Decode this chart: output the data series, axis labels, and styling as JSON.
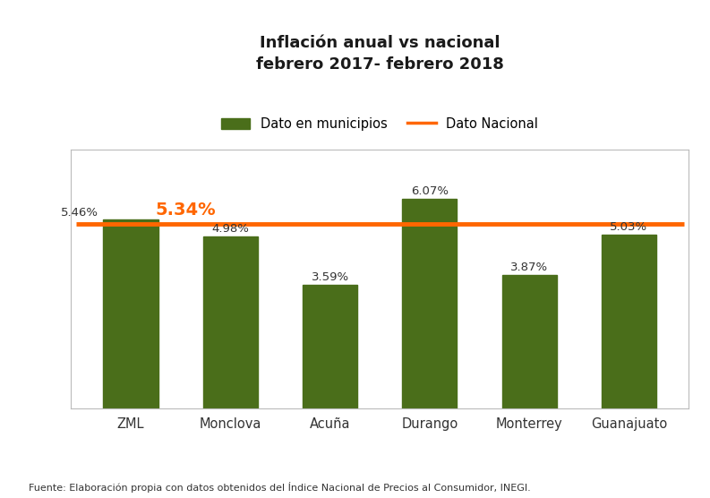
{
  "title": "Inflación anual vs nacional\nfebrero 2017- febrero 2018",
  "categories": [
    "ZML",
    "Monclova",
    "Acuña",
    "Durango",
    "Monterrey",
    "Guanajuato"
  ],
  "values": [
    5.46,
    4.98,
    3.59,
    6.07,
    3.87,
    5.03
  ],
  "bar_color": "#4a6e1a",
  "national_value": 5.34,
  "national_color": "#FF6600",
  "national_label": "Dato Nacional",
  "bars_label": "Dato en municipios",
  "footnote": "Fuente: Elaboración propia con datos obtenidos del Índice Nacional de Precios al Consumidor, INEGI.",
  "ylim": [
    0,
    7.5
  ],
  "title_fontsize": 13,
  "bar_label_fontsize": 9.5,
  "national_label_fontsize": 14,
  "national_linewidth": 3.5,
  "background_color": "#ffffff",
  "panel_color": "#ffffff",
  "border_color": "#bbbbbb"
}
